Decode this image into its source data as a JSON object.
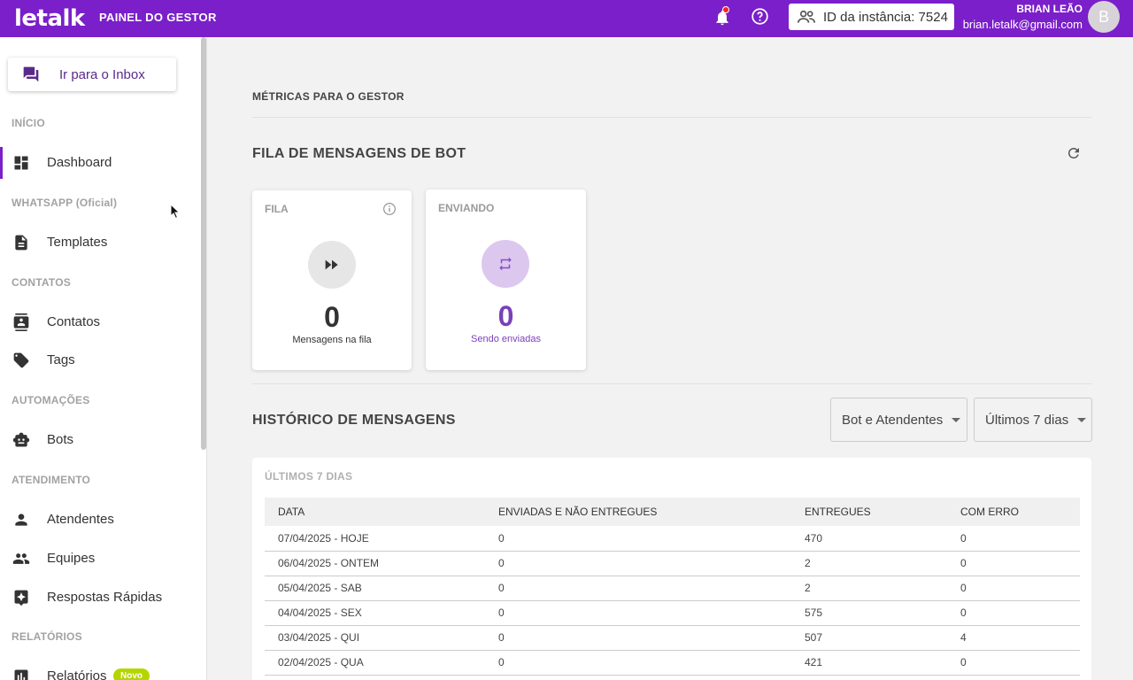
{
  "header": {
    "logo": "letalk",
    "panel_title": "PAINEL DO GESTOR",
    "instance_label": "ID da instância: 7524",
    "user_name": "BRIAN LEÃO",
    "user_email": "brian.letalk@gmail.com",
    "avatar_initial": "B",
    "accent_color": "#7a1fc9"
  },
  "sidebar": {
    "inbox_button": "Ir para o Inbox",
    "sections": {
      "inicio": "INÍCIO",
      "whatsapp": "WHATSAPP (Oficial)",
      "contatos": "CONTATOS",
      "automacoes": "AUTOMAÇÕES",
      "atendimento": "ATENDIMENTO",
      "relatorios": "RELATÓRIOS"
    },
    "items": {
      "dashboard": "Dashboard",
      "templates": "Templates",
      "contatos": "Contatos",
      "tags": "Tags",
      "bots": "Bots",
      "atendentes": "Atendentes",
      "equipes": "Equipes",
      "respostas": "Respostas Rápidas",
      "relatorios": "Relatórios"
    },
    "new_badge": "Novo"
  },
  "main": {
    "metrics_title": "MÉTRICAS PARA O GESTOR",
    "bot_queue_title": "FILA DE MENSAGENS DE BOT",
    "cards": {
      "fila": {
        "label": "FILA",
        "value": "0",
        "sub": "Mensagens na fila"
      },
      "enviando": {
        "label": "ENVIANDO",
        "value": "0",
        "sub": "Sendo enviadas"
      }
    },
    "history_title": "HISTÓRICO DE MENSAGENS",
    "filter_who": "Bot e Atendentes",
    "filter_period": "Últimos 7 dias",
    "table_title": "ÚLTIMOS 7 DIAS",
    "columns": [
      "DATA",
      "ENVIADAS E NÃO ENTREGUES",
      "ENTREGUES",
      "COM ERRO"
    ],
    "rows": [
      [
        "07/04/2025 - HOJE",
        "0",
        "470",
        "0"
      ],
      [
        "06/04/2025 - ONTEM",
        "0",
        "2",
        "0"
      ],
      [
        "05/04/2025 - SAB",
        "0",
        "2",
        "0"
      ],
      [
        "04/04/2025 - SEX",
        "0",
        "575",
        "0"
      ],
      [
        "03/04/2025 - QUI",
        "0",
        "507",
        "4"
      ],
      [
        "02/04/2025 - QUA",
        "0",
        "421",
        "0"
      ]
    ]
  }
}
